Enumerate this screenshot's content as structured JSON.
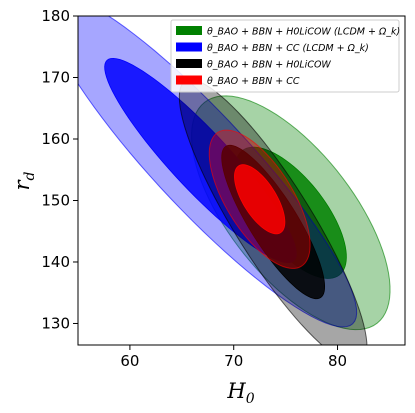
{
  "chart_data": {
    "type": "contour",
    "title": "",
    "xlabel": "H",
    "xlabel_sub": "0",
    "ylabel": "r",
    "ylabel_sub": "d",
    "xlim": [
      55,
      86.5
    ],
    "ylim": [
      126.5,
      180
    ],
    "xticks": [
      60,
      70,
      80
    ],
    "yticks": [
      130,
      140,
      150,
      160,
      170,
      180
    ],
    "xtick_labels": [
      "60",
      "70",
      "80"
    ],
    "ytick_labels": [
      "130",
      "140",
      "150",
      "160",
      "170",
      "180"
    ],
    "grid": false,
    "legend_position": "top-right",
    "series": [
      {
        "name": "θ_BAO + BBN + H0LiCOW  (LCDM + Ω_k)",
        "color": "#008000",
        "center": [
          75.5,
          148.0
        ],
        "angle_deg": -52,
        "outer_semi_axes": [
          13.5,
          6.0
        ],
        "inner_semi_axes": [
          7.6,
          3.3
        ]
      },
      {
        "name": "θ_BAO + BBN + CC  (LCDM + Ω_k)",
        "color": "#0000ff",
        "center": [
          66.8,
          156.5
        ],
        "angle_deg": -47,
        "outer_semi_axes": [
          21.5,
          4.6
        ],
        "inner_semi_axes": [
          13.2,
          2.8
        ]
      },
      {
        "name": "θ_BAO + BBN + H0LiCOW",
        "color": "#000000",
        "center": [
          73.8,
          146.5
        ],
        "angle_deg": -58,
        "outer_semi_axes": [
          16.0,
          3.7
        ],
        "inner_semi_axes": [
          8.6,
          2.3
        ]
      },
      {
        "name": "θ_BAO + BBN + CC",
        "color": "#ff0000",
        "center": [
          72.5,
          150.2
        ],
        "angle_deg": -58,
        "outer_semi_axes": [
          7.6,
          3.2
        ],
        "inner_semi_axes": [
          3.8,
          1.6
        ]
      }
    ],
    "legend": [
      {
        "text": "θ_BAO + BBN + H0LiCOW  (LCDM + Ω_k)",
        "color": "#008000"
      },
      {
        "text": "θ_BAO + BBN + CC  (LCDM + Ω_k)",
        "color": "#0000ff"
      },
      {
        "text": "θ_BAO + BBN + H0LiCOW",
        "color": "#000000"
      },
      {
        "text": "θ_BAO + BBN + CC",
        "color": "#ff0000"
      }
    ]
  }
}
